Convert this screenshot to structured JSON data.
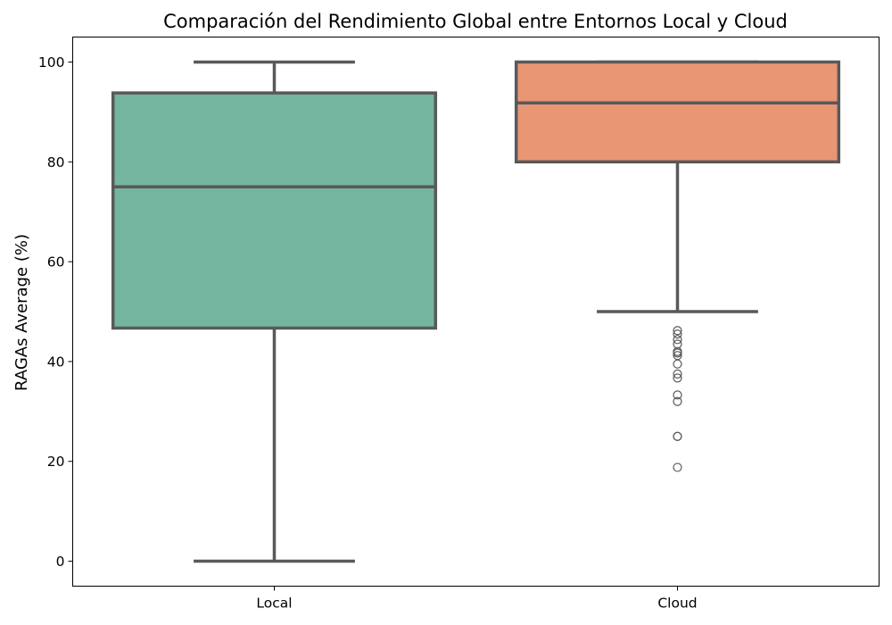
{
  "chart_data": {
    "type": "box",
    "title": "Comparación del Rendimiento Global entre Entornos Local y Cloud",
    "xlabel": "",
    "ylabel": "RAGAs Average (%)",
    "categories": [
      "Local",
      "Cloud"
    ],
    "yticks": [
      0,
      20,
      40,
      60,
      80,
      100
    ],
    "ylim": [
      -5,
      105
    ],
    "grid": false,
    "legend": "none",
    "boxes": [
      {
        "category": "Local",
        "color": "#74b5a0",
        "whisker_low": 0,
        "q1": 46.7,
        "median": 75.0,
        "q3": 93.8,
        "whisker_high": 100,
        "outliers": []
      },
      {
        "category": "Cloud",
        "color": "#e99675",
        "whisker_low": 50,
        "q1": 80.0,
        "median": 91.8,
        "q3": 100,
        "whisker_high": 100,
        "outliers": [
          46.2,
          45.5,
          44.4,
          43.5,
          42.0,
          41.7,
          41.2,
          39.5,
          37.5,
          36.7,
          33.3,
          32.0,
          25.0,
          25.0,
          18.8
        ]
      }
    ]
  }
}
